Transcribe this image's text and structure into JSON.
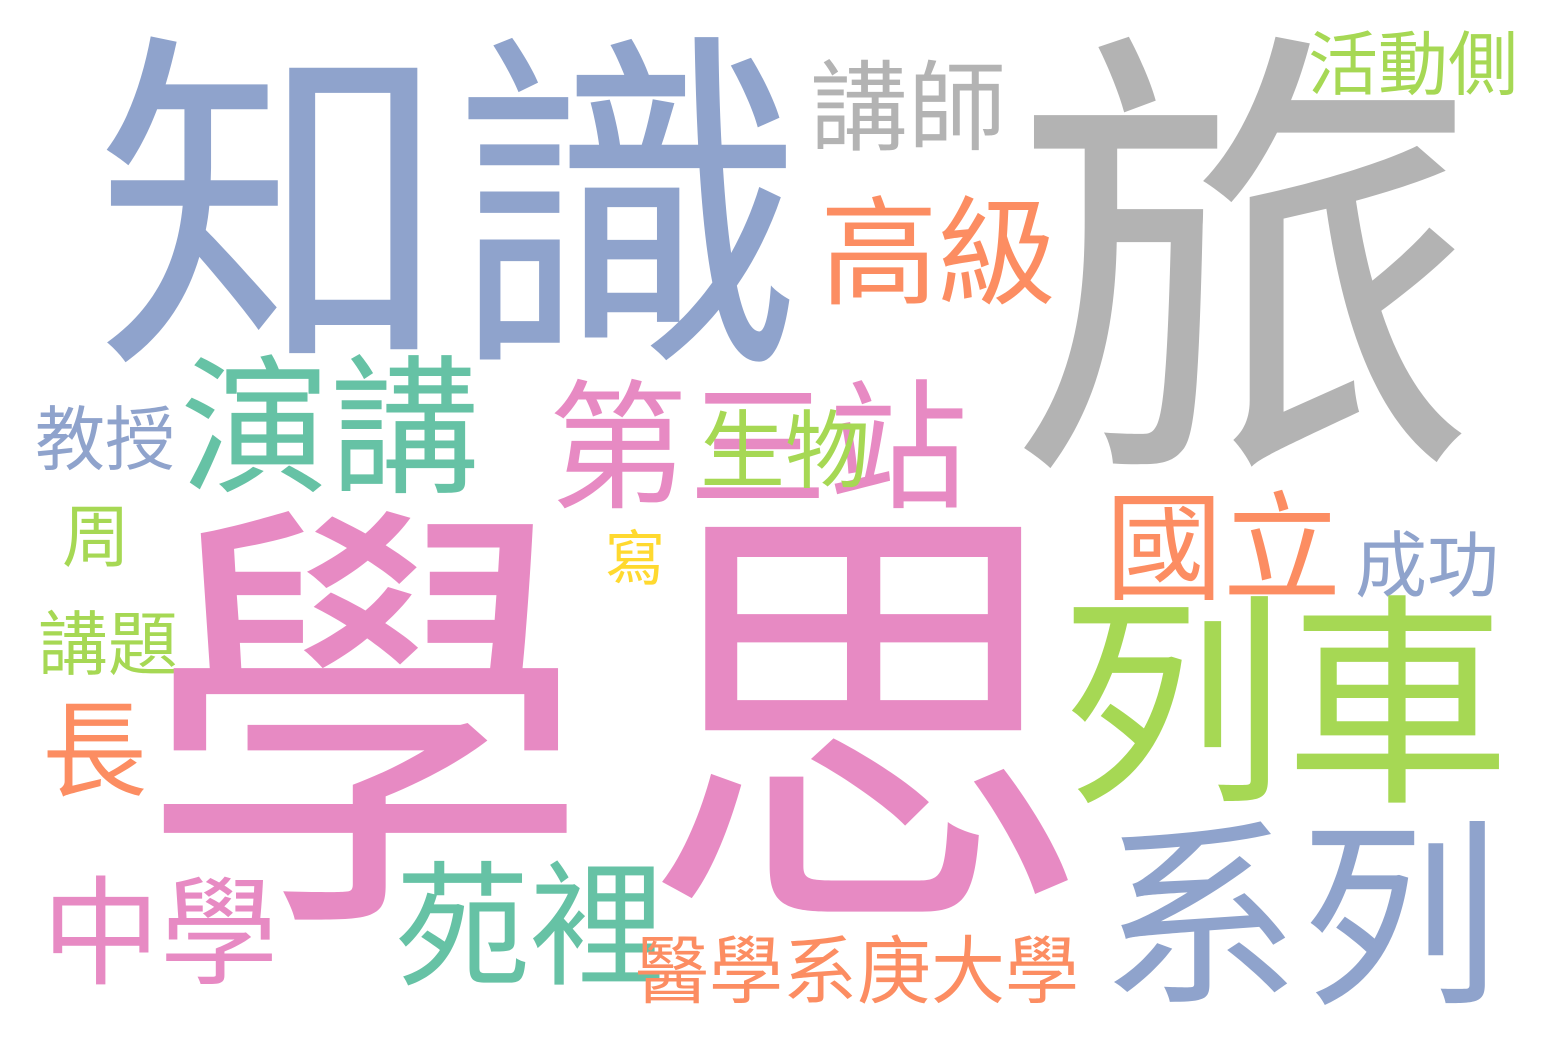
{
  "words": {
    "zhishi": {
      "text": "知識",
      "color": "#8fa3cc"
    },
    "lu": {
      "text": "旅",
      "color": "#b3b3b3"
    },
    "xue": {
      "text": "學",
      "color": "#e78ac3"
    },
    "si": {
      "text": "思",
      "color": "#e78ac3"
    },
    "jiangshi": {
      "text": "講師",
      "color": "#b3b3b3"
    },
    "gaoji": {
      "text": "高級",
      "color": "#fc8d62"
    },
    "huodong": {
      "text": "活動側",
      "color": "#a6d854"
    },
    "yanjiang": {
      "text": "演講",
      "color": "#66c2a5"
    },
    "dizhan": {
      "text": "第三站",
      "color": "#e78ac3"
    },
    "shengwu": {
      "text": "生物",
      "color": "#a6d854"
    },
    "jiaoshou": {
      "text": "教授",
      "color": "#8fa3cc"
    },
    "zhou": {
      "text": "周",
      "color": "#a6d854"
    },
    "xie": {
      "text": "寫",
      "color": "#ffd92f"
    },
    "jiangti": {
      "text": "講題",
      "color": "#a6d854"
    },
    "zhang": {
      "text": "長",
      "color": "#fc8d62"
    },
    "guoli": {
      "text": "國立",
      "color": "#fc8d62"
    },
    "chenggong": {
      "text": "成功",
      "color": "#8fa3cc"
    },
    "lieche": {
      "text": "列車",
      "color": "#a6d854"
    },
    "xilie": {
      "text": "系列",
      "color": "#8fa3cc"
    },
    "zhongxue": {
      "text": "中學",
      "color": "#e78ac3"
    },
    "yuanli": {
      "text": "苑裡",
      "color": "#66c2a5"
    },
    "yixue": {
      "text": "醫學系庚大學",
      "color": "#fc8d62"
    }
  }
}
